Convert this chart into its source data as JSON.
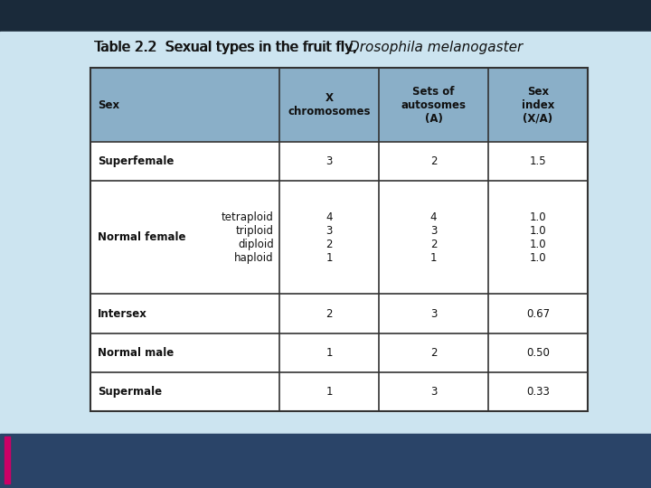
{
  "title_normal": "Table 2.2  Sexual types in the fruit fly, ",
  "title_italic": "Drosophila melanogaster",
  "bg_light": "#cce4f0",
  "bg_dark_top": "#1a2a3a",
  "bg_dark_bottom": "#2a4060",
  "header_bg": "#8aafc8",
  "table_border": "#333333",
  "cell_bg_white": "#ffffff",
  "title_color": "#111111",
  "body_text_color": "#111111",
  "col_headers": [
    "Sex",
    "X\nchromosomes",
    "Sets of\nautosomes\n(A)",
    "Sex\nindex\n(X/A)"
  ],
  "rows": [
    {
      "sex_label": "Superfemale",
      "sex_sub": "",
      "x_chrom": "3",
      "autosomes": "2",
      "sex_index": "1.5"
    },
    {
      "sex_label": "Normal female",
      "sex_sub": "tetraploid\ntriploid\ndiploid\nhaploid",
      "x_chrom": "4\n3\n2\n1",
      "autosomes": "4\n3\n2\n1",
      "sex_index": "1.0\n1.0\n1.0\n1.0"
    },
    {
      "sex_label": "Intersex",
      "sex_sub": "",
      "x_chrom": "2",
      "autosomes": "3",
      "sex_index": "0.67"
    },
    {
      "sex_label": "Normal male",
      "sex_sub": "",
      "x_chrom": "1",
      "autosomes": "2",
      "sex_index": "0.50"
    },
    {
      "sex_label": "Supermale",
      "sex_sub": "",
      "x_chrom": "1",
      "autosomes": "3",
      "sex_index": "0.33"
    }
  ]
}
